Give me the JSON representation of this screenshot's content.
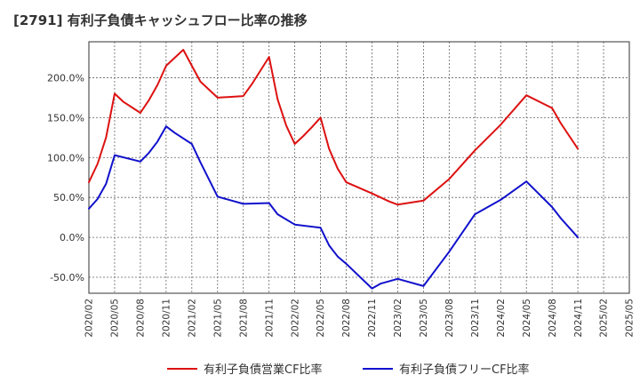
{
  "chart_data": {
    "type": "line",
    "title": "[2791]  有利子負債キャッシュフロー比率の推移",
    "xlabel": "",
    "ylabel": "",
    "ylim": [
      -70,
      245
    ],
    "yticks": [
      200,
      150,
      100,
      50,
      0,
      -50
    ],
    "ytick_labels": [
      "200.0%",
      "150.0%",
      "100.0%",
      "50.0%",
      "0.0%",
      "-50.0%"
    ],
    "x_ticks": [
      "2020/02",
      "2020/05",
      "2020/08",
      "2020/11",
      "2021/02",
      "2021/05",
      "2021/08",
      "2021/11",
      "2022/02",
      "2022/05",
      "2022/08",
      "2022/11",
      "2023/02",
      "2023/05",
      "2023/08",
      "2023/11",
      "2024/02",
      "2024/05",
      "2024/08",
      "2024/11",
      "2025/02",
      "2025/05"
    ],
    "grid": true,
    "legend_position": "bottom",
    "series": [
      {
        "name": "有利子負債営業CF比率",
        "color": "#dd1111",
        "points": [
          [
            "2020/02",
            69
          ],
          [
            "2020/03",
            92
          ],
          [
            "2020/04",
            125
          ],
          [
            "2020/05",
            180
          ],
          [
            "2020/06",
            170
          ],
          [
            "2020/08",
            156
          ],
          [
            "2020/09",
            172
          ],
          [
            "2020/10",
            191
          ],
          [
            "2020/11",
            215
          ],
          [
            "2021/01",
            235
          ],
          [
            "2021/02",
            215
          ],
          [
            "2021/03",
            195
          ],
          [
            "2021/05",
            175
          ],
          [
            "2021/08",
            177
          ],
          [
            "2021/09",
            192
          ],
          [
            "2021/11",
            226
          ],
          [
            "2021/12",
            173
          ],
          [
            "2022/01",
            140
          ],
          [
            "2022/02",
            117
          ],
          [
            "2022/03",
            127
          ],
          [
            "2022/04",
            138
          ],
          [
            "2022/05",
            150
          ],
          [
            "2022/06",
            111
          ],
          [
            "2022/07",
            86
          ],
          [
            "2022/08",
            69
          ],
          [
            "2022/11",
            55
          ],
          [
            "2023/01",
            45
          ],
          [
            "2023/02",
            41
          ],
          [
            "2023/05",
            46
          ],
          [
            "2023/08",
            73
          ],
          [
            "2023/11",
            109
          ],
          [
            "2024/02",
            141
          ],
          [
            "2024/05",
            178
          ],
          [
            "2024/08",
            162
          ],
          [
            "2024/09",
            143
          ],
          [
            "2024/11",
            111
          ]
        ]
      },
      {
        "name": "有利子負債フリーCF比率",
        "color": "#1111cc",
        "points": [
          [
            "2020/02",
            36
          ],
          [
            "2020/03",
            48
          ],
          [
            "2020/04",
            67
          ],
          [
            "2020/05",
            103
          ],
          [
            "2020/08",
            95
          ],
          [
            "2020/09",
            106
          ],
          [
            "2020/10",
            120
          ],
          [
            "2020/11",
            139
          ],
          [
            "2020/12",
            131
          ],
          [
            "2021/02",
            117
          ],
          [
            "2021/03",
            94
          ],
          [
            "2021/05",
            51
          ],
          [
            "2021/08",
            42
          ],
          [
            "2021/11",
            43
          ],
          [
            "2021/12",
            29
          ],
          [
            "2022/02",
            16
          ],
          [
            "2022/05",
            12
          ],
          [
            "2022/06",
            -10
          ],
          [
            "2022/07",
            -24
          ],
          [
            "2022/08",
            -33
          ],
          [
            "2022/11",
            -64
          ],
          [
            "2022/12",
            -58
          ],
          [
            "2023/02",
            -52
          ],
          [
            "2023/05",
            -61
          ],
          [
            "2023/08",
            -18
          ],
          [
            "2023/11",
            29
          ],
          [
            "2024/02",
            47
          ],
          [
            "2024/05",
            70
          ],
          [
            "2024/08",
            38
          ],
          [
            "2024/09",
            24
          ],
          [
            "2024/11",
            0
          ]
        ]
      }
    ]
  }
}
